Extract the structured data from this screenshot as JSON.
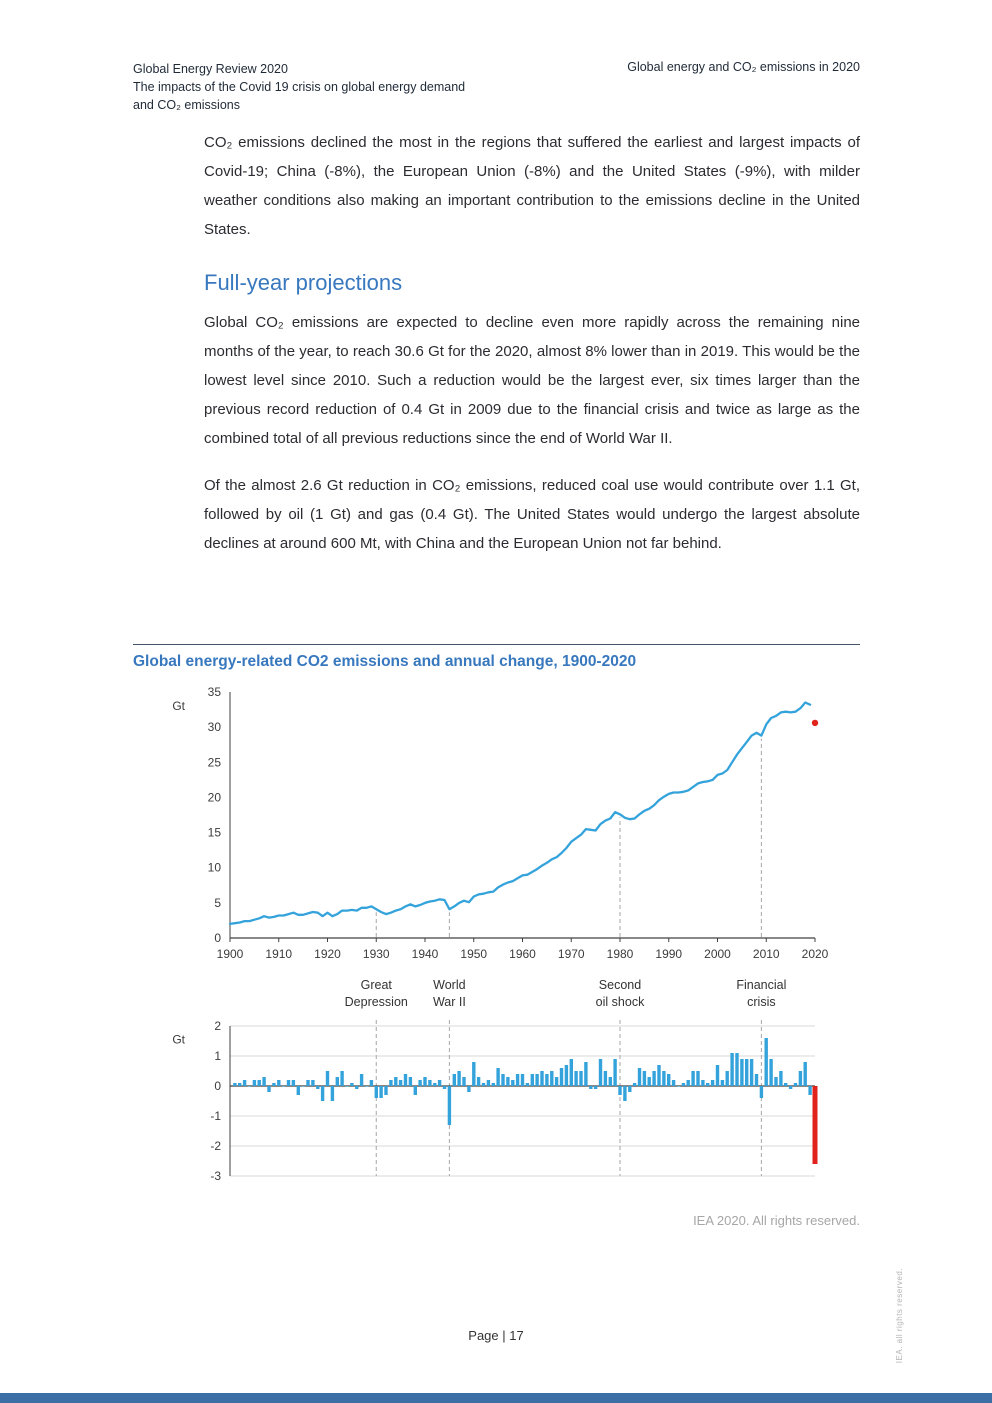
{
  "header": {
    "left_title": "Global Energy Review 2020",
    "left_sub1": "The impacts of the Covid 19 crisis on global energy demand",
    "left_sub2": "and CO₂ emissions",
    "right": "Global energy and CO₂ emissions in 2020"
  },
  "content": {
    "para1": "CO₂ emissions declined the most in the regions that suffered the earliest and largest impacts of Covid-19; China (-8%), the European Union (-8%) and the United States (-9%), with milder weather conditions also making an important contribution to the emissions decline in the United States.",
    "heading": "Full-year projections",
    "para2": "Global CO₂ emissions are expected to decline even more rapidly across the remaining nine months of the year, to reach 30.6 Gt for the 2020, almost 8% lower than in 2019. This would be the lowest level since 2010. Such a reduction would be the largest ever, six times larger than the previous record reduction of 0.4 Gt in 2009 due to the financial crisis and twice as large as the combined total of all previous reductions since the end of World War II.",
    "para3": "Of the almost 2.6 Gt reduction in CO₂ emissions, reduced coal use would contribute over 1.1 Gt, followed by oil (1 Gt) and gas (0.4 Gt). The United States would undergo the largest absolute declines at around 600 Mt, with China and the European Union not far behind.",
    "credit": "IEA 2020. All rights reserved."
  },
  "footer": {
    "page_label": "Page | 17",
    "side_note": "IEA. all rights reserved."
  },
  "theme": {
    "accent_blue": "#3878be",
    "chart_blue": "#35a3db",
    "highlight_red": "#e0231c",
    "band_blue": "#3a6ea5",
    "divider": "#44546a"
  },
  "chart_data": [
    {
      "type": "line",
      "title": "Global energy-related CO2 emissions and annual change, 1900-2020",
      "ylabel": "Gt",
      "xlabel": "",
      "ylim": [
        0,
        35
      ],
      "yticks": [
        0,
        5,
        10,
        15,
        20,
        25,
        30,
        35
      ],
      "xticks": [
        1900,
        1910,
        1920,
        1930,
        1940,
        1950,
        1960,
        1970,
        1980,
        1990,
        2000,
        2010,
        2020
      ],
      "x_start": 1900,
      "x_step": 1,
      "values": [
        2.0,
        2.1,
        2.2,
        2.4,
        2.4,
        2.6,
        2.8,
        3.1,
        2.9,
        3.0,
        3.2,
        3.2,
        3.4,
        3.6,
        3.3,
        3.3,
        3.5,
        3.7,
        3.6,
        3.1,
        3.6,
        3.1,
        3.4,
        3.9,
        3.9,
        4.0,
        3.9,
        4.3,
        4.3,
        4.5,
        4.1,
        3.7,
        3.4,
        3.6,
        3.9,
        4.1,
        4.5,
        4.8,
        4.5,
        4.7,
        5.0,
        5.2,
        5.3,
        5.5,
        5.4,
        4.1,
        4.5,
        5.0,
        5.3,
        5.1,
        5.9,
        6.2,
        6.3,
        6.5,
        6.6,
        7.2,
        7.6,
        7.9,
        8.1,
        8.5,
        8.9,
        9.0,
        9.4,
        9.8,
        10.3,
        10.7,
        11.2,
        11.5,
        12.1,
        12.8,
        13.7,
        14.2,
        14.7,
        15.5,
        15.4,
        15.3,
        16.2,
        16.7,
        17.0,
        17.9,
        17.6,
        17.1,
        16.9,
        17.0,
        17.6,
        18.1,
        18.4,
        18.9,
        19.6,
        20.1,
        20.5,
        20.7,
        20.7,
        20.8,
        21.0,
        21.5,
        22.0,
        22.2,
        22.3,
        22.5,
        23.2,
        23.4,
        23.9,
        25.0,
        26.1,
        27.0,
        27.9,
        28.8,
        29.2,
        28.8,
        30.4,
        31.3,
        31.6,
        32.1,
        32.2,
        32.1,
        32.2,
        32.7,
        33.5,
        33.2
      ],
      "projection_2020": 30.6,
      "line_color": "#35a3db",
      "projection_color": "#e0231c",
      "legend": "none",
      "grid": false,
      "annotations": [
        {
          "year": 1930,
          "label": "Great\nDepression"
        },
        {
          "year": 1945,
          "label": "World\nWar II"
        },
        {
          "year": 1980,
          "label": "Second\noil shock"
        },
        {
          "year": 2009,
          "label": "Financial\ncrisis"
        }
      ]
    },
    {
      "type": "bar",
      "description": "Annual change in Gt CO2; each bar is the year-over-year difference of the emissions series above (1901-2019); the 2020 bar is the projection (30.6) minus 2019 (33.2)",
      "ylabel": "Gt",
      "ylim": [
        -3,
        2
      ],
      "yticks": [
        -3,
        -2,
        -1,
        0,
        1,
        2
      ],
      "grid": true,
      "bar_color": "#35a3db",
      "highlight_year": 2020,
      "highlight_value": -2.6,
      "highlight_color": "#e0231c"
    }
  ]
}
